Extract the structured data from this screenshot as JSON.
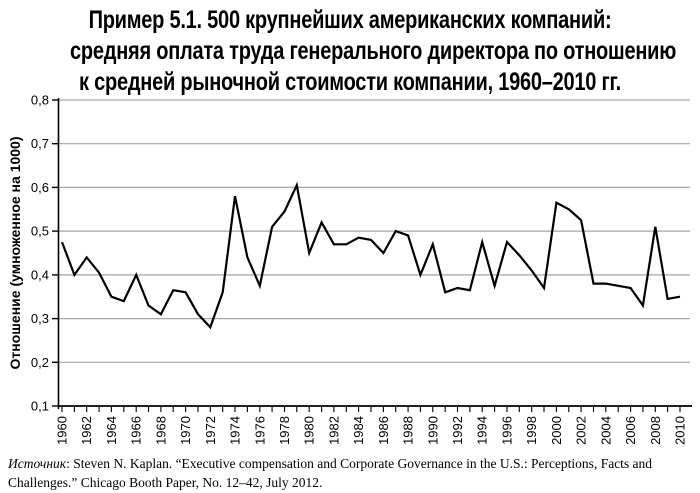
{
  "title": {
    "line1": "Пример 5.1. 500 крупнейших американских компаний:",
    "line2": "средняя оплата труда генерального директора по отношению",
    "line3": "к средней рыночной стоимости компании, 1960–2010 гг."
  },
  "source_note": {
    "label_italic": "Источник",
    "line1_rest": ": Steven N. Kaplan. “Executive compensation and Corporate Governance in the U.S.: Perceptions, Facts and",
    "line2": "Challenges.” Chicago Booth Paper, No. 12–42, July 2012."
  },
  "chart_data": {
    "type": "line",
    "title": "Пример 5.1. 500 крупнейших американских компаний: средняя оплата труда генерального директора по отношению к средней рыночной стоимости компании, 1960–2010 гг.",
    "xlabel": "",
    "ylabel": "Отношение (умноженное на 1000)",
    "ylim": [
      0.1,
      0.8
    ],
    "grid": "horizontal",
    "legend": "none",
    "x": [
      1960,
      1961,
      1962,
      1963,
      1964,
      1965,
      1966,
      1967,
      1968,
      1969,
      1970,
      1971,
      1972,
      1973,
      1974,
      1975,
      1976,
      1977,
      1978,
      1979,
      1980,
      1981,
      1982,
      1983,
      1984,
      1985,
      1986,
      1987,
      1988,
      1989,
      1990,
      1991,
      1992,
      1993,
      1994,
      1995,
      1996,
      1997,
      1998,
      1999,
      2000,
      2001,
      2002,
      2003,
      2004,
      2005,
      2006,
      2007,
      2008,
      2009,
      2010
    ],
    "values": [
      0.475,
      0.4,
      0.44,
      0.405,
      0.35,
      0.34,
      0.4,
      0.33,
      0.31,
      0.365,
      0.36,
      0.31,
      0.28,
      0.36,
      0.58,
      0.44,
      0.375,
      0.51,
      0.545,
      0.605,
      0.45,
      0.52,
      0.47,
      0.47,
      0.485,
      0.48,
      0.45,
      0.5,
      0.49,
      0.4,
      0.47,
      0.36,
      0.37,
      0.365,
      0.475,
      0.375,
      0.475,
      0.445,
      0.41,
      0.37,
      0.565,
      0.55,
      0.525,
      0.38,
      0.38,
      0.375,
      0.37,
      0.33,
      0.51,
      0.345,
      0.35
    ],
    "ytick_values": [
      0.1,
      0.2,
      0.3,
      0.4,
      0.5,
      0.6,
      0.7,
      0.8
    ],
    "ytick_labels": [
      "0,1",
      "0,2",
      "0,3",
      "0,4",
      "0,5",
      "0,6",
      "0,7",
      "0,8"
    ],
    "xtick_labeled_years": [
      1960,
      1962,
      1964,
      1966,
      1968,
      1970,
      1972,
      1974,
      1976,
      1978,
      1980,
      1982,
      1984,
      1986,
      1988,
      1990,
      1992,
      1994,
      1996,
      1998,
      2000,
      2002,
      2004,
      2006,
      2008,
      2010
    ],
    "colors": {
      "line": "#000000",
      "grid": "#a6a6a6",
      "axis": "#000000",
      "text": "#000000",
      "background": "#ffffff"
    }
  }
}
